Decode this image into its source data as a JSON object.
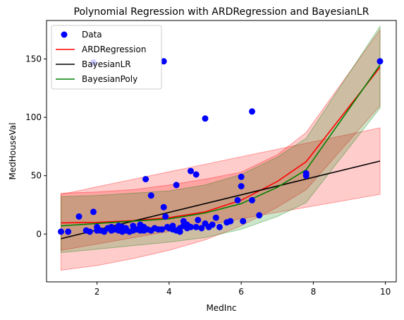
{
  "chart_data": {
    "type": "scatter",
    "title": "Polynomial Regression with ARDRegression and BayesianLR",
    "xlabel": "MedInc",
    "ylabel": "MedHouseVal",
    "xlim": [
      0.6,
      10.3
    ],
    "ylim": [
      -41,
      183
    ],
    "xticks": [
      2,
      4,
      6,
      8,
      10
    ],
    "yticks": [
      0,
      50,
      100,
      150
    ],
    "grid": false,
    "legend_position": "top-left",
    "legend": [
      "Data",
      "ARDRegression",
      "BayesianLR",
      "BayesianPoly"
    ],
    "colors": {
      "data": "#0000ff",
      "ard": "#ff0000",
      "bayes_lr": "#000000",
      "bayes_poly": "#008000"
    },
    "scatter": {
      "name": "Data",
      "x": [
        1.0,
        1.2,
        1.5,
        1.7,
        1.8,
        1.9,
        1.9,
        2.0,
        2.0,
        2.1,
        2.2,
        2.3,
        2.4,
        2.4,
        2.5,
        2.6,
        2.6,
        2.7,
        2.7,
        2.8,
        2.8,
        2.9,
        3.0,
        3.0,
        3.1,
        3.2,
        3.2,
        3.3,
        3.3,
        3.35,
        3.4,
        3.5,
        3.5,
        3.6,
        3.7,
        3.8,
        3.85,
        3.85,
        3.9,
        3.95,
        4.0,
        4.1,
        4.1,
        4.2,
        4.2,
        4.3,
        4.3,
        4.4,
        4.4,
        4.5,
        4.5,
        4.6,
        4.6,
        4.75,
        4.75,
        4.8,
        4.9,
        5.0,
        5.0,
        5.1,
        5.2,
        5.3,
        5.4,
        5.6,
        5.7,
        5.9,
        6.0,
        6.0,
        6.05,
        6.3,
        6.3,
        6.5,
        7.8,
        7.8,
        9.85
      ],
      "y": [
        2,
        2,
        15,
        3,
        2,
        19,
        147,
        3,
        6,
        3,
        2,
        5,
        3,
        6,
        4,
        3,
        7,
        2,
        6,
        3,
        5,
        2,
        3,
        7,
        4,
        3,
        8,
        3,
        6,
        47,
        4,
        33,
        3,
        5,
        4,
        4,
        23,
        148,
        15,
        6,
        5,
        4,
        7,
        42,
        3,
        2,
        5,
        11,
        7,
        5,
        8,
        54,
        6,
        6,
        51,
        12,
        5,
        99,
        9,
        6,
        8,
        14,
        6,
        10,
        11,
        29,
        41,
        49,
        11,
        105,
        29,
        16,
        50,
        52,
        148
      ]
    },
    "series": [
      {
        "name": "ARDRegression",
        "x": [
          1,
          2,
          3,
          4,
          5,
          6,
          7,
          7.8,
          9.85
        ],
        "y": [
          9.5,
          10,
          11.5,
          14,
          19,
          29,
          45,
          62,
          143
        ],
        "band_lower": [
          -31,
          -27,
          -21,
          -14,
          -5,
          7,
          23,
          38,
          110
        ],
        "band_upper": [
          35,
          36,
          38,
          42,
          47,
          53,
          68,
          87,
          175
        ]
      },
      {
        "name": "BayesianLR",
        "x": [
          1,
          9.85
        ],
        "y": [
          -4,
          62.5
        ],
        "band_lower": [
          -14,
          34
        ],
        "band_upper": [
          34,
          91
        ]
      },
      {
        "name": "BayesianPoly",
        "x": [
          1,
          2,
          3,
          4,
          5,
          6,
          7,
          7.8,
          9.85
        ],
        "y": [
          7,
          9,
          11,
          13,
          18,
          26,
          40,
          55,
          145
        ],
        "band_lower": [
          -16,
          -13,
          -10,
          -7,
          -3,
          4,
          15,
          27,
          108
        ],
        "band_upper": [
          32,
          33,
          35,
          37,
          42,
          51,
          66,
          82,
          178
        ]
      }
    ]
  }
}
